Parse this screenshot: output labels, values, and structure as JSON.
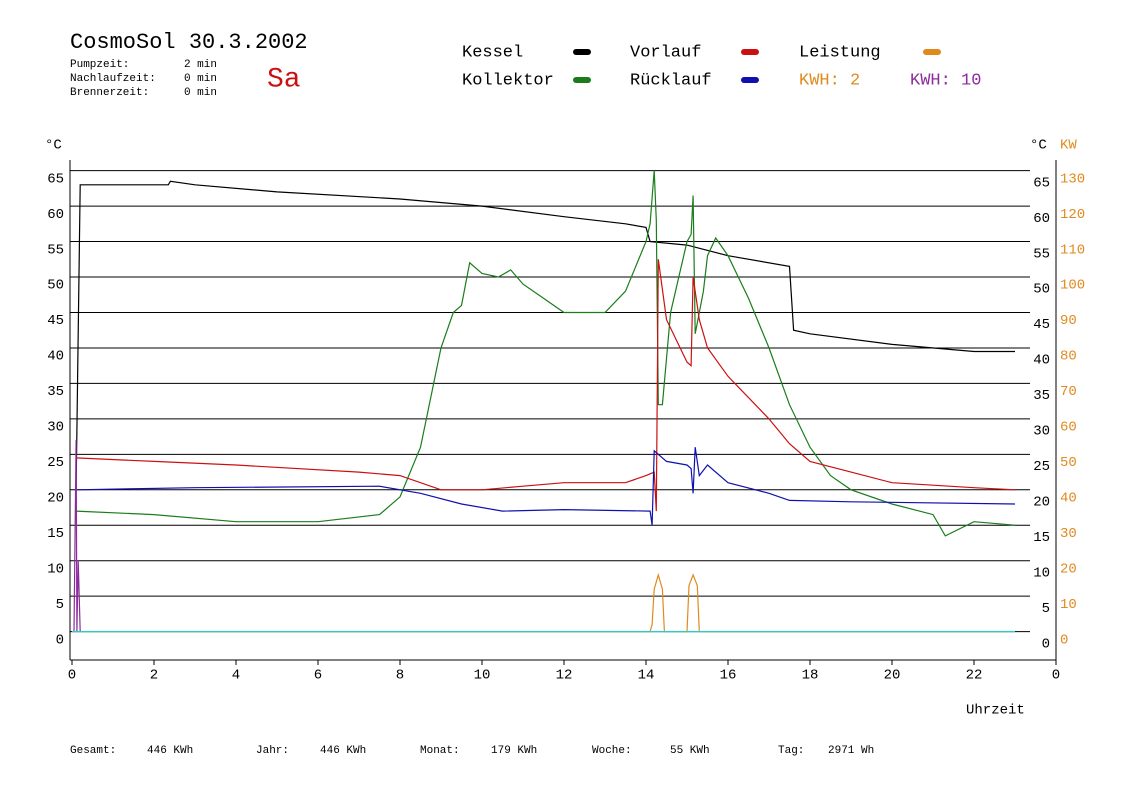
{
  "header": {
    "title": "CosmoSol 30.3.2002",
    "day": "Sa",
    "stats": [
      {
        "label": "Pumpzeit:",
        "value": "2 min"
      },
      {
        "label": "Nachlaufzeit:",
        "value": "0 min"
      },
      {
        "label": "Brennerzeit:",
        "value": "0 min"
      }
    ]
  },
  "footer": [
    {
      "label": "Gesamt:",
      "value": "446 KWh"
    },
    {
      "label": "Jahr:",
      "value": "446 KWh"
    },
    {
      "label": "Monat:",
      "value": "179 KWh"
    },
    {
      "label": "Woche:",
      "value": "55 KWh"
    },
    {
      "label": "Tag:",
      "value": "2971 Wh"
    }
  ],
  "chart_data": {
    "type": "line",
    "y_label": "°C",
    "y2_label": "°C",
    "y2_unit_label": "KW",
    "x_label": "Uhrzeit",
    "kwh_labels": [
      {
        "text": "KWH: 2",
        "color": "#e08a1e"
      },
      {
        "text": "KWH: 10",
        "color": "#8b2c9c"
      }
    ],
    "xlim": [
      0,
      24
    ],
    "xticks": [
      0,
      2,
      4,
      6,
      8,
      10,
      12,
      14,
      16,
      18,
      20,
      22,
      {
        "value": 24,
        "label": "0"
      }
    ],
    "ylim": [
      -4,
      66.5
    ],
    "yticks": [
      0,
      5,
      10,
      15,
      20,
      25,
      30,
      35,
      40,
      45,
      50,
      55,
      60,
      65
    ],
    "y2lim": [
      -8,
      133
    ],
    "y2ticks": [
      0,
      10,
      20,
      30,
      40,
      50,
      60,
      70,
      80,
      90,
      100,
      110,
      120,
      130
    ],
    "grid": true,
    "series": [
      {
        "name": "Kessel",
        "color": "#000000",
        "x": [
          0.1,
          0.2,
          2.35,
          2.4,
          3,
          5,
          8,
          10,
          12,
          13.5,
          14,
          14.1,
          15,
          16,
          17.5,
          17.6,
          18,
          20,
          22,
          23
        ],
        "values": [
          20,
          63,
          63,
          63.5,
          63,
          62,
          61,
          60,
          58.5,
          57.5,
          57,
          55,
          54.5,
          53,
          51.5,
          42.5,
          42,
          40.5,
          39.5,
          39.5
        ]
      },
      {
        "name": "Kollektor",
        "color": "#1a7d1a",
        "x": [
          0.1,
          2,
          4,
          6,
          7.5,
          8,
          8.5,
          9,
          9.3,
          9.5,
          9.7,
          10,
          10.4,
          10.7,
          11,
          11.5,
          12,
          12.5,
          13,
          13.5,
          14,
          14.1,
          14.2,
          14.25,
          14.3,
          14.4,
          14.6,
          15,
          15.1,
          15.15,
          15.2,
          15.4,
          15.5,
          15.7,
          16,
          16.5,
          17,
          17.5,
          18,
          18.5,
          19,
          20,
          21,
          21.3,
          22,
          23
        ],
        "values": [
          17,
          16.5,
          15.5,
          15.5,
          16.5,
          19,
          26,
          40,
          45,
          46,
          52,
          50.5,
          50,
          51,
          49,
          47,
          45,
          45,
          45,
          48,
          55,
          57.5,
          65,
          58,
          32,
          32,
          45,
          55,
          56,
          61.5,
          42,
          48,
          53,
          55.5,
          53,
          47,
          40,
          32,
          26,
          22,
          20,
          18,
          16.5,
          13.5,
          15.5,
          15
        ]
      },
      {
        "name": "Vorlauf",
        "color": "#cc1010",
        "x": [
          0.1,
          2,
          4,
          7,
          8,
          9,
          10,
          11,
          12,
          13.5,
          14,
          14.2,
          14.25,
          14.3,
          14.5,
          15,
          15.1,
          15.15,
          15.3,
          15.5,
          16,
          17,
          17.5,
          18,
          19,
          20,
          22,
          23
        ],
        "values": [
          24.5,
          24,
          23.5,
          22.5,
          22,
          20,
          20,
          20.5,
          21,
          21,
          22,
          22.5,
          17,
          52.5,
          44,
          38,
          37.5,
          50,
          44,
          40,
          36,
          30,
          26.5,
          24,
          22.5,
          21,
          20.3,
          20
        ]
      },
      {
        "name": "Rücklauf",
        "color": "#1010b0",
        "x": [
          0.1,
          3,
          7.5,
          8.5,
          9.5,
          10.5,
          12,
          14.1,
          14.15,
          14.2,
          14.5,
          15,
          15.1,
          15.15,
          15.2,
          15.3,
          15.5,
          16,
          17,
          17.5,
          19,
          23
        ],
        "values": [
          20,
          20.3,
          20.5,
          19.5,
          18,
          17,
          17.2,
          17,
          15,
          25.5,
          24,
          23.5,
          23,
          19.5,
          26,
          22,
          23.5,
          21,
          19.5,
          18.5,
          18.3,
          18
        ]
      },
      {
        "name": "Leistung",
        "color": "#e08a1e",
        "axis": "y2",
        "x": [
          0,
          14.1,
          14.15,
          14.2,
          14.3,
          14.4,
          14.45,
          15,
          15.05,
          15.15,
          15.25,
          15.3,
          23
        ],
        "values": [
          0,
          0,
          2,
          12,
          16,
          12,
          0,
          0,
          13,
          16,
          13,
          0,
          0
        ]
      },
      {
        "color": "#8b2c9c",
        "x": [
          0.05,
          0.1,
          0.12,
          0.15,
          0.2
        ],
        "values": [
          0,
          27,
          0,
          10,
          0
        ]
      },
      {
        "color": "#20d0d0",
        "x": [
          0,
          23
        ],
        "values": [
          0,
          0
        ]
      }
    ]
  }
}
